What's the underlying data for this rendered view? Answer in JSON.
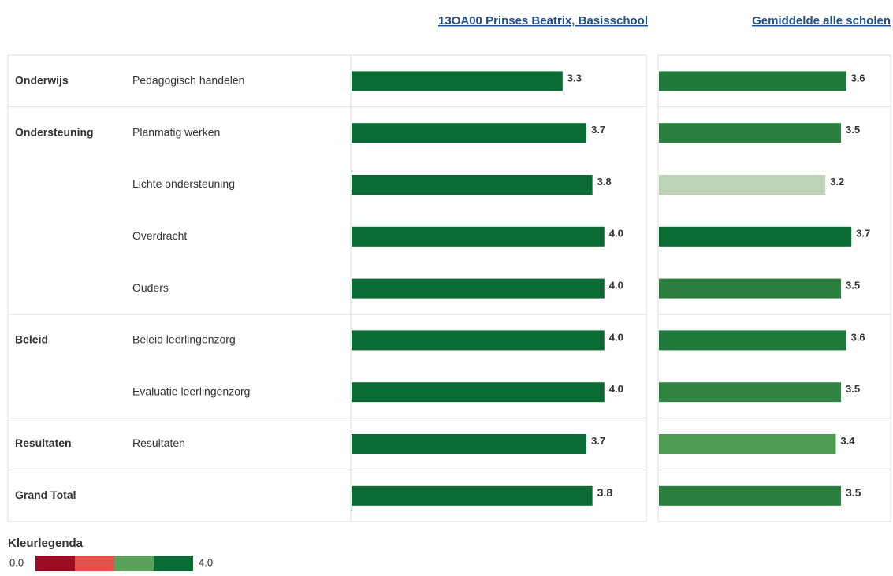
{
  "headers": [
    "13OA00 Prinses Beatrix, Basisschool",
    "Gemiddelde alle scholen"
  ],
  "school_color": "#0b6b35",
  "rows": [
    {
      "group": "Onderwijs",
      "label": "Pedagogisch handelen",
      "school": 3.3,
      "school_label": "3.3",
      "average": 3.6,
      "average_label": "3.6",
      "average_color": "#1f7a3b"
    },
    {
      "group": "Ondersteuning",
      "label": "Planmatig werken",
      "school": 3.7,
      "school_label": "3.7",
      "average": 3.5,
      "average_label": "3.5",
      "average_color": "#2a7f3e"
    },
    {
      "label": "Lichte ondersteuning",
      "school": 3.8,
      "school_label": "3.8",
      "average": 3.2,
      "average_label": "3.2",
      "average_color": "#bdd2b6"
    },
    {
      "label": "Overdracht",
      "school": 4.0,
      "school_label": "4.0",
      "average": 3.7,
      "average_label": "3.7",
      "average_color": "#0b6b35"
    },
    {
      "label": "Ouders",
      "school": 4.0,
      "school_label": "4.0",
      "average": 3.5,
      "average_label": "3.5",
      "average_color": "#2a7f3e"
    },
    {
      "group": "Beleid",
      "label": "Beleid leerlingenzorg",
      "school": 4.0,
      "school_label": "4.0",
      "average": 3.6,
      "average_label": "3.6",
      "average_color": "#1f7a3b"
    },
    {
      "label": "Evaluatie leerlingenzorg",
      "school": 4.0,
      "school_label": "4.0",
      "average": 3.5,
      "average_label": "3.5",
      "average_color": "#2f8441"
    },
    {
      "group": "Resultaten",
      "label": "Resultaten",
      "school": 3.7,
      "school_label": "3.7",
      "average": 3.4,
      "average_label": "3.4",
      "average_color": "#4c9c52"
    },
    {
      "group": "Grand Total",
      "school": 3.8,
      "school_label": "3.8",
      "average": 3.5,
      "average_label": "3.5",
      "average_color": "#2a7f3e",
      "total": true
    }
  ],
  "legend": {
    "title": "Kleurlegenda",
    "min_label": "0.0",
    "max_label": "4.0",
    "colors": [
      "#9b0d24",
      "#e0524a",
      "#5aa25b",
      "#0b6b35"
    ]
  }
}
